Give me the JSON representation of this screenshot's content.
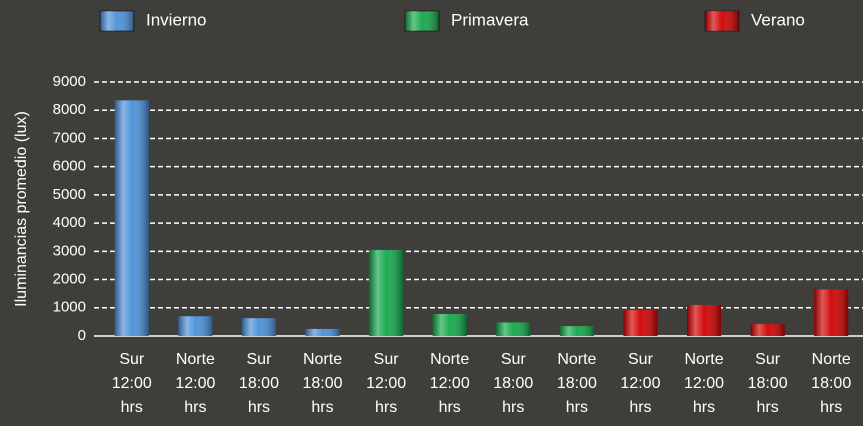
{
  "chart_data": {
    "type": "bar",
    "y_label": "Iluminancias promedio (lux)",
    "categories": [
      "Sur 12:00 hrs",
      "Norte 12:00 hrs",
      "Sur 18:00 hrs",
      "Norte 18:00 hrs",
      "Sur 12:00 hrs",
      "Norte 12:00 hrs",
      "Sur 18:00 hrs",
      "Norte 18:00 hrs",
      "Sur 12:00 hrs",
      "Norte 12:00 hrs",
      "Sur 18:00 hrs",
      "Norte 18:00 hrs"
    ],
    "series": [
      {
        "name": "Invierno",
        "color": "#4a8fd8",
        "values": [
          8350,
          700,
          630,
          250,
          null,
          null,
          null,
          null,
          null,
          null,
          null,
          null
        ]
      },
      {
        "name": "Primavera",
        "color": "#14a64a",
        "values": [
          null,
          null,
          null,
          null,
          3050,
          780,
          480,
          350,
          null,
          null,
          null,
          null
        ]
      },
      {
        "name": "Verano",
        "color": "#d00000",
        "values": [
          null,
          null,
          null,
          null,
          null,
          null,
          null,
          null,
          920,
          1100,
          420,
          1650
        ]
      }
    ],
    "ylim": [
      0,
      9000
    ],
    "yticks": [
      0,
      1000,
      2000,
      3000,
      4000,
      5000,
      6000,
      7000,
      8000,
      9000
    ],
    "grid": true,
    "legend": "top"
  }
}
